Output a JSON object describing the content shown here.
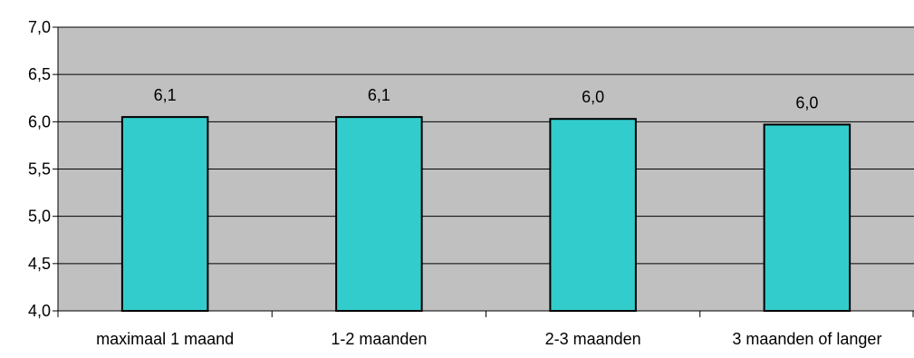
{
  "chart_data": {
    "type": "bar",
    "categories": [
      "maximaal 1 maand",
      "1-2 maanden",
      "2-3 maanden",
      "3 maanden of langer"
    ],
    "values": [
      6.05,
      6.05,
      6.03,
      5.97
    ],
    "data_labels": [
      "6,1",
      "6,1",
      "6,0",
      "6,0"
    ],
    "y_ticks": [
      "4,0",
      "4,5",
      "5,0",
      "5,5",
      "6,0",
      "6,5",
      "7,0"
    ],
    "y_tick_values": [
      4.0,
      4.5,
      5.0,
      5.5,
      6.0,
      6.5,
      7.0
    ],
    "ylim": [
      4.0,
      7.0
    ],
    "title": "",
    "xlabel": "",
    "ylabel": "",
    "grid": true,
    "legend": "none",
    "colors": {
      "plot_background": "#c0c0c0",
      "bar_fill": "#33cccc",
      "bar_stroke": "#000000",
      "gridline": "#000000"
    }
  }
}
